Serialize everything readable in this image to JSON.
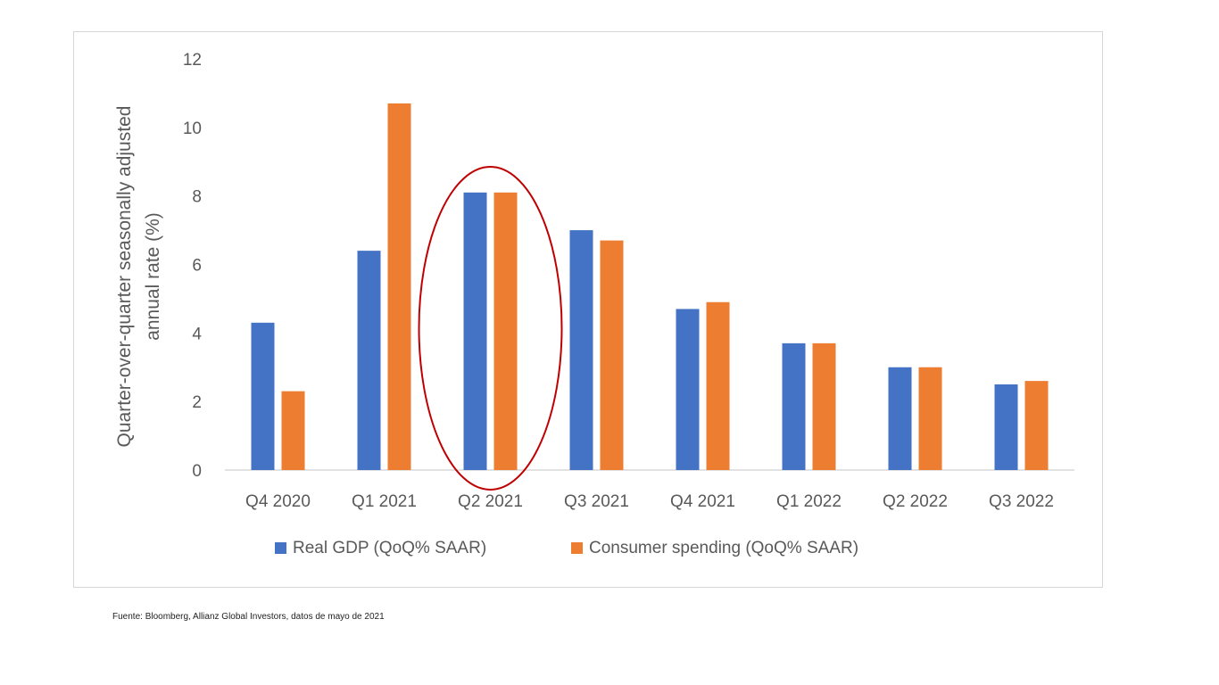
{
  "chart_data": {
    "type": "bar",
    "title": "",
    "xlabel": "",
    "ylabel": "Quarter-over-quarter seasonally adjusted annual rate (%)",
    "ylabel_lines": [
      "Quarter-over-quarter seasonally adjusted",
      "annual rate (%)"
    ],
    "ylim": [
      0,
      12
    ],
    "yticks": [
      0,
      2,
      4,
      6,
      8,
      10,
      12
    ],
    "grid": false,
    "legend_position": "bottom",
    "categories": [
      "Q4 2020",
      "Q1 2021",
      "Q2 2021",
      "Q3 2021",
      "Q4 2021",
      "Q1 2022",
      "Q2 2022",
      "Q3 2022"
    ],
    "series": [
      {
        "name": "Real GDP (QoQ% SAAR)",
        "color": "#4472c4",
        "values": [
          4.3,
          6.4,
          8.1,
          7.0,
          4.7,
          3.7,
          3.0,
          2.5
        ]
      },
      {
        "name": "Consumer spending (QoQ% SAAR)",
        "color": "#ed7d31",
        "values": [
          2.3,
          10.7,
          8.1,
          6.7,
          4.9,
          3.7,
          3.0,
          2.6
        ]
      }
    ],
    "annotation": {
      "shape": "ellipse",
      "highlight_category": "Q2 2021",
      "color": "#c00000"
    }
  },
  "source_note": "Fuente: Bloomberg, Allianz Global Investors, datos de mayo de 2021"
}
